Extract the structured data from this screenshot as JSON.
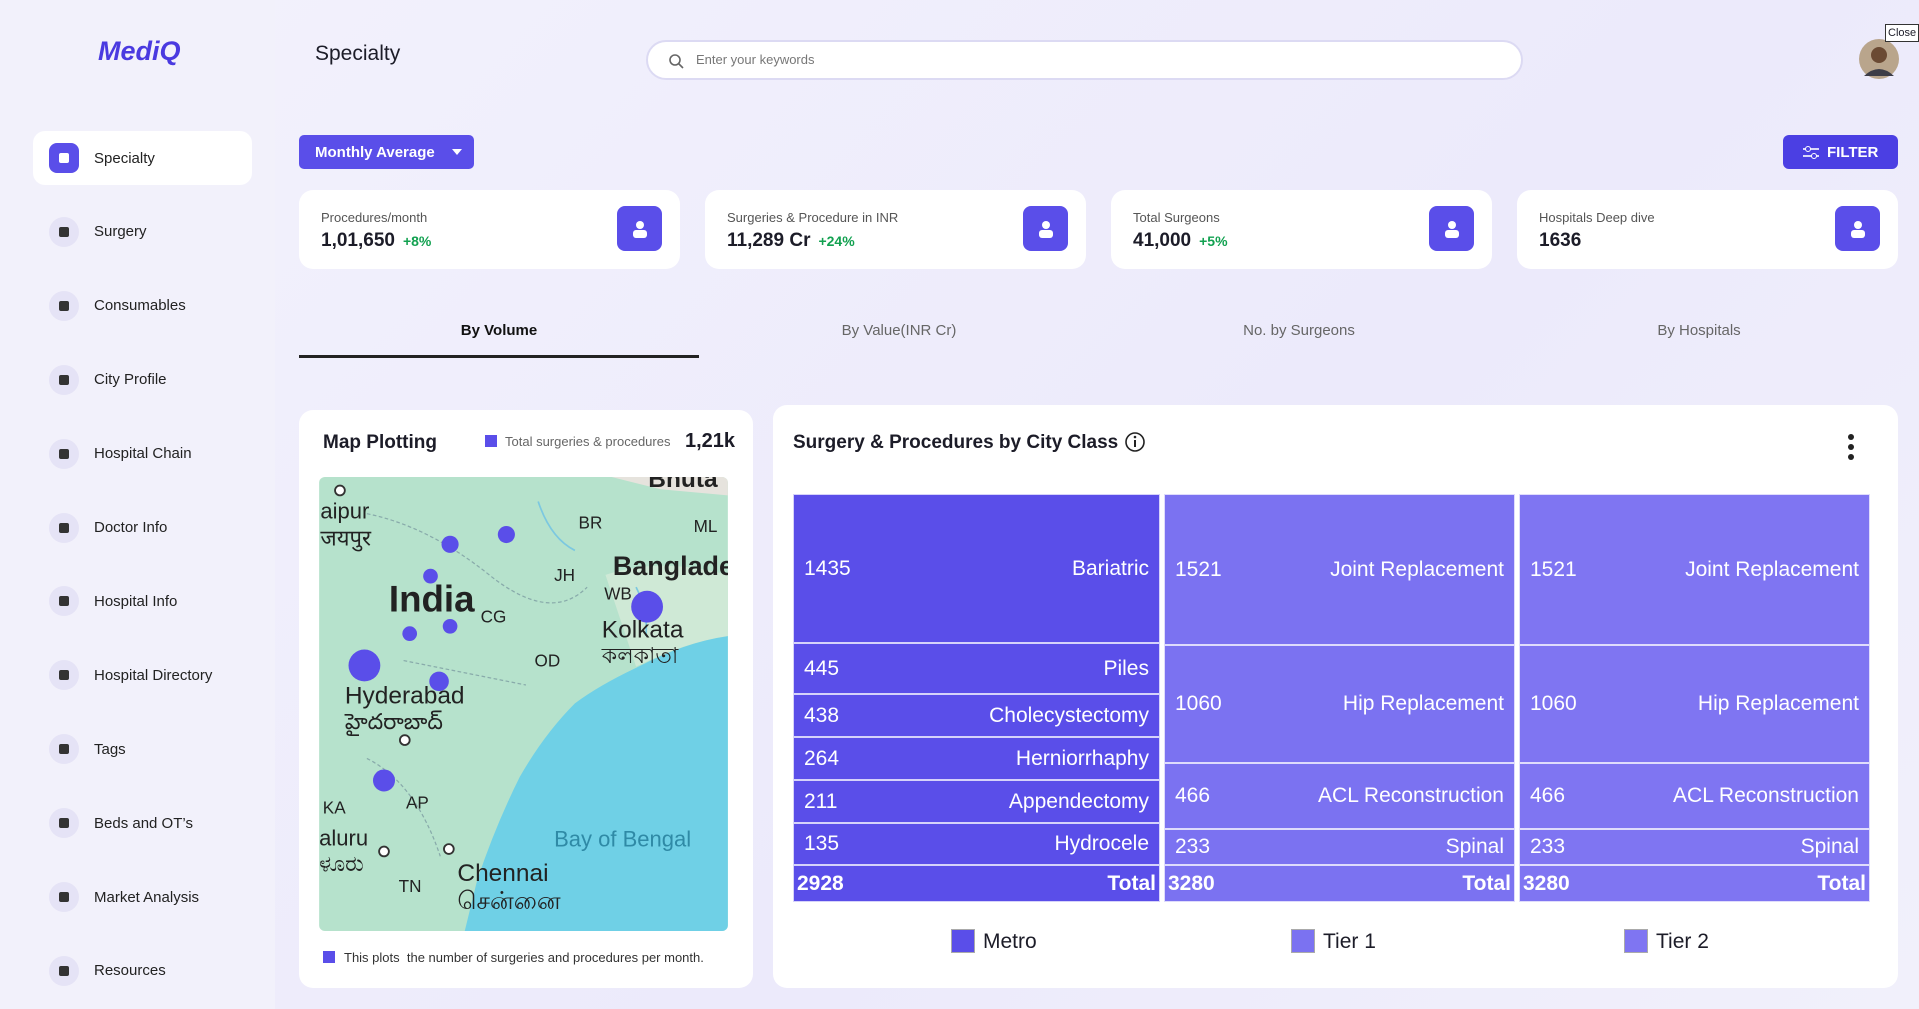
{
  "sidebar": {
    "logo": "MediQ",
    "nav": [
      "Specialty",
      "Surgery",
      "Consumables",
      "City Profile",
      "Hospital Chain",
      "Doctor Info",
      "Hospital Info",
      "Hospital Directory",
      "Tags",
      "Beds and OT’s",
      "Market Analysis",
      "Resources"
    ]
  },
  "header": {
    "title": "Specialty",
    "search_placeholder": "Enter your keywords",
    "close": "Close"
  },
  "toolbar": {
    "dropdown": "Monthly Average",
    "filter": "FILTER"
  },
  "kpis": [
    {
      "label": "Procedures/month",
      "value": "1,01,650",
      "change": "+8%"
    },
    {
      "label": "Surgeries & Procedure in INR",
      "value": "11,289 Cr",
      "change": "+24%"
    },
    {
      "label": "Total Surgeons",
      "value": "41,000",
      "change": "+5%"
    },
    {
      "label": "Hospitals Deep dive",
      "value": "1636"
    }
  ],
  "tabs": [
    "By Volume",
    "By Value(INR Cr)",
    "No. by Surgeons",
    "By Hospitals"
  ],
  "map": {
    "title": "Map Plotting",
    "legend": "Total surgeries & procedures",
    "total": "1,21k",
    "note": "This plots  the number of surgeries and procedures per month.",
    "labels": [
      "Bhuta",
      "aipur",
      "जयपुर",
      "BR",
      "ML",
      "Banglade",
      "India",
      "JH",
      "WB",
      "CG",
      "Kolkata",
      "কলকাতা",
      "OD",
      "Hyderabad",
      "హైదరాబాద్",
      "KA",
      "AP",
      "Bay of Bengal",
      "aluru",
      "ಳೂರು",
      "TN",
      "Chennai",
      "சென்னை"
    ]
  },
  "city_class": {
    "title": "Surgery & Procedures by City Class",
    "columns": [
      {
        "name": "Metro",
        "color": "#5a4ee9",
        "rows": [
          {
            "value": 1435,
            "label": "Bariatric"
          },
          {
            "value": 445,
            "label": "Piles"
          },
          {
            "value": 438,
            "label": "Cholecystectomy"
          },
          {
            "value": 264,
            "label": "Herniorrhaphy"
          },
          {
            "value": 211,
            "label": "Appendectomy"
          },
          {
            "value": 135,
            "label": "Hydrocele"
          }
        ],
        "total": {
          "value": 2928,
          "label": "Total"
        }
      },
      {
        "name": "Tier 1",
        "color": "#7b72f1",
        "rows": [
          {
            "value": 1521,
            "label": "Joint Replacement"
          },
          {
            "value": 1060,
            "label": "Hip Replacement"
          },
          {
            "value": 466,
            "label": "ACL Reconstruction"
          },
          {
            "value": 233,
            "label": "Spinal"
          }
        ],
        "total": {
          "value": 3280,
          "label": "Total"
        }
      },
      {
        "name": "Tier 2",
        "color": "#7f75f2",
        "rows": [
          {
            "value": 1521,
            "label": "Joint Replacement"
          },
          {
            "value": 1060,
            "label": "Hip Replacement"
          },
          {
            "value": 466,
            "label": "ACL Reconstruction"
          },
          {
            "value": 233,
            "label": "Spinal"
          }
        ],
        "total": {
          "value": 3280,
          "label": "Total"
        }
      }
    ]
  }
}
